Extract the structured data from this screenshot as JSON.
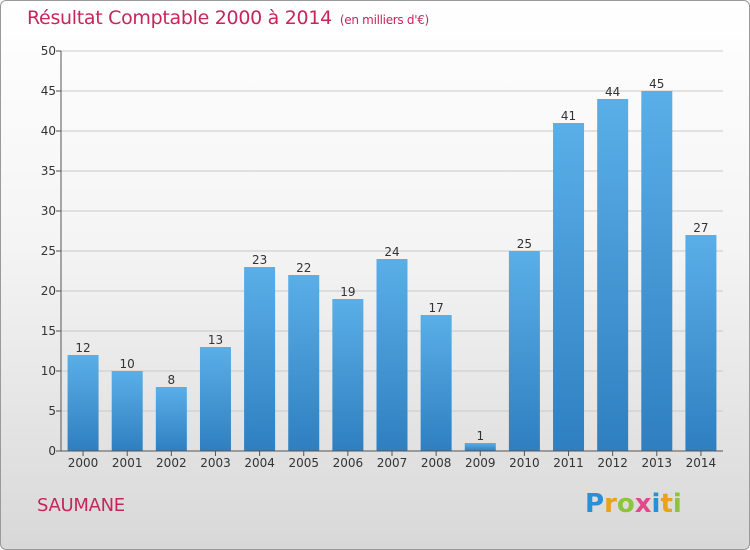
{
  "chart_data": {
    "type": "bar",
    "title": "Résultat Comptable 2000 à 2014",
    "unit_label": "(en milliers d'€)",
    "categories": [
      "2000",
      "2001",
      "2002",
      "2003",
      "2004",
      "2005",
      "2006",
      "2007",
      "2008",
      "2009",
      "2010",
      "2011",
      "2012",
      "2013",
      "2014"
    ],
    "values": [
      12,
      10,
      8,
      13,
      23,
      22,
      19,
      24,
      17,
      1,
      25,
      41,
      44,
      45,
      27
    ],
    "ylim": [
      0,
      50
    ],
    "yticks": [
      0,
      5,
      10,
      15,
      20,
      25,
      30,
      35,
      40,
      45,
      50
    ],
    "xlabel": "",
    "ylabel": "",
    "grid": true,
    "bar_color": "#4a9fe0"
  },
  "commune": "SAUMANE",
  "logo": {
    "letters": [
      "P",
      "r",
      "o",
      "x",
      "i",
      "t",
      "i"
    ]
  }
}
